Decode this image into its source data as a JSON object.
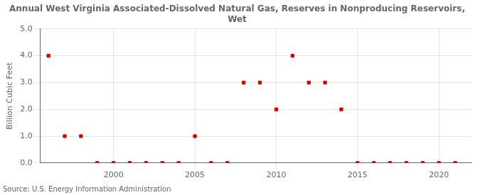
{
  "chart_data": {
    "type": "scatter",
    "title": "Annual West Virginia Associated-Dissolved Natural Gas, Reserves in Nonproducing Reservoirs,\nWet",
    "ylabel": "Billion Cubic Feet",
    "annotation": "Source: U.S. Energy Information Administration",
    "x": [
      1996,
      1997,
      1998,
      1999,
      2000,
      2001,
      2002,
      2003,
      2004,
      2005,
      2006,
      2007,
      2008,
      2009,
      2010,
      2011,
      2012,
      2013,
      2014,
      2015,
      2016,
      2017,
      2018,
      2019,
      2020,
      2021
    ],
    "values": [
      4.0,
      1.0,
      1.0,
      0.0,
      0.0,
      0.0,
      0.0,
      0.0,
      0.0,
      1.0,
      0.0,
      0.0,
      3.0,
      3.0,
      2.0,
      4.0,
      3.0,
      3.0,
      2.0,
      0.0,
      0.0,
      0.0,
      0.0,
      0.0,
      0.0,
      0.0
    ],
    "color": "#cc0000",
    "marker": "square",
    "xlim": [
      1995.5,
      2022.0
    ],
    "xticks": [
      2000,
      2005,
      2010,
      2015,
      2020
    ],
    "ylim": [
      0.0,
      5.0
    ],
    "yticks": [
      {
        "value": 0.0,
        "label": "0.0"
      },
      {
        "value": 1.0,
        "label": "1.0"
      },
      {
        "value": 2.0,
        "label": "2.0"
      },
      {
        "value": 3.0,
        "label": "3.0"
      },
      {
        "value": 4.0,
        "label": "4.0"
      },
      {
        "value": 5.0,
        "label": "5.0"
      }
    ],
    "grid": true
  }
}
